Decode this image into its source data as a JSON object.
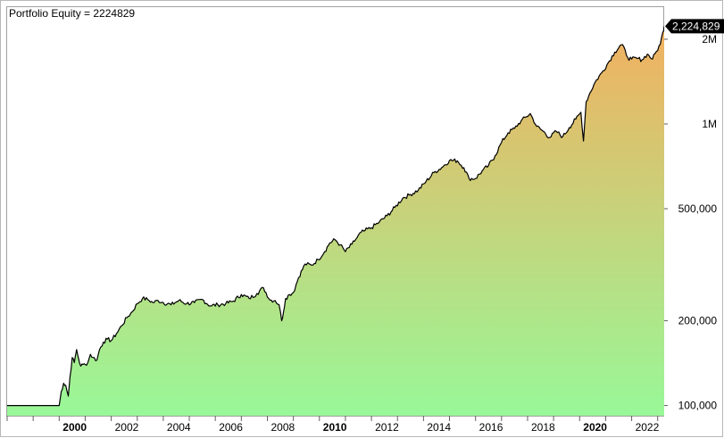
{
  "chart_data": {
    "type": "area",
    "title": "Portfolio Equity = 2224829",
    "last_value_label": "2,224,829",
    "y_scale": "log",
    "ylim": [
      92000,
      2600000
    ],
    "xlim": [
      1998.0,
      2023.25
    ],
    "y_ticks": [
      {
        "value": 100000,
        "label": "100,000"
      },
      {
        "value": 200000,
        "label": "200,000"
      },
      {
        "value": 500000,
        "label": "500,000"
      },
      {
        "value": 1000000,
        "label": "1M"
      },
      {
        "value": 2000000,
        "label": "2M"
      }
    ],
    "x_ticks": [
      {
        "value": 2000,
        "label": "2000",
        "bold": true
      },
      {
        "value": 2002,
        "label": "2002",
        "bold": false
      },
      {
        "value": 2004,
        "label": "2004",
        "bold": false
      },
      {
        "value": 2006,
        "label": "2006",
        "bold": false
      },
      {
        "value": 2008,
        "label": "2008",
        "bold": false
      },
      {
        "value": 2010,
        "label": "2010",
        "bold": true
      },
      {
        "value": 2012,
        "label": "2012",
        "bold": false
      },
      {
        "value": 2014,
        "label": "2014",
        "bold": false
      },
      {
        "value": 2016,
        "label": "2016",
        "bold": false
      },
      {
        "value": 2018,
        "label": "2018",
        "bold": false
      },
      {
        "value": 2020,
        "label": "2020",
        "bold": true
      },
      {
        "value": 2022,
        "label": "2022",
        "bold": false
      }
    ],
    "grid": false,
    "fill_gradient": {
      "top": "#f2b060",
      "bottom": "#98f898"
    },
    "line_color": "#000000",
    "series": [
      {
        "x": [
          1998.0,
          1999.5,
          1999.75,
          1999.8,
          1999.85,
          1999.95,
          2000.0,
          2000.08,
          2000.17,
          2000.25,
          2000.35,
          2000.42,
          2000.5,
          2000.58,
          2000.67,
          2000.75,
          2000.83,
          2000.92,
          2001.0,
          2001.1,
          2001.2,
          2001.3,
          2001.45,
          2001.55,
          2001.7,
          2001.85,
          2002.0,
          2002.2,
          2002.4,
          2002.6,
          2002.8,
          2003.0,
          2003.2,
          2003.4,
          2003.6,
          2003.8,
          2004.0,
          2004.3,
          2004.6,
          2004.9,
          2005.2,
          2005.5,
          2005.8,
          2006.1,
          2006.4,
          2006.7,
          2007.0,
          2007.3,
          2007.6,
          2007.85,
          2008.1,
          2008.3,
          2008.45,
          2008.55,
          2008.62,
          2008.7,
          2008.85,
          2009.0,
          2009.2,
          2009.45,
          2009.7,
          2009.95,
          2010.2,
          2010.4,
          2010.6,
          2010.8,
          2011.0,
          2011.25,
          2011.45,
          2011.6,
          2011.75,
          2012.0,
          2012.3,
          2012.6,
          2012.9,
          2013.2,
          2013.5,
          2013.8,
          2014.1,
          2014.4,
          2014.7,
          2015.0,
          2015.3,
          2015.55,
          2015.75,
          2016.0,
          2016.25,
          2016.5,
          2016.75,
          2017.0,
          2017.25,
          2017.5,
          2017.75,
          2017.95,
          2018.1,
          2018.35,
          2018.6,
          2018.85,
          2019.1,
          2019.35,
          2019.6,
          2019.85,
          2020.05,
          2020.15,
          2020.25,
          2020.4,
          2020.6,
          2020.85,
          2021.1,
          2021.35,
          2021.6,
          2021.75,
          2021.85,
          2022.0,
          2022.2,
          2022.4,
          2022.6,
          2022.8,
          2022.95,
          2023.1,
          2023.2,
          2023.25
        ],
        "y": [
          100000,
          100000,
          100000,
          100000,
          100000,
          100000,
          100000,
          112000,
          120000,
          118000,
          108000,
          127000,
          148000,
          142000,
          158000,
          146000,
          138000,
          140000,
          140000,
          142000,
          152000,
          148000,
          145000,
          158000,
          168000,
          172000,
          170000,
          180000,
          192000,
          205000,
          215000,
          230000,
          240000,
          238000,
          232000,
          236000,
          232000,
          228000,
          236000,
          230000,
          232000,
          238000,
          226000,
          228000,
          230000,
          235000,
          248000,
          240000,
          250000,
          262000,
          237000,
          236000,
          228000,
          200000,
          215000,
          240000,
          248000,
          252000,
          285000,
          318000,
          315000,
          330000,
          352000,
          378000,
          388000,
          372000,
          352000,
          374000,
          395000,
          412000,
          418000,
          428000,
          448000,
          472000,
          505000,
          545000,
          562000,
          582000,
          625000,
          672000,
          700000,
          742000,
          740000,
          700000,
          640000,
          640000,
          680000,
          712000,
          770000,
          860000,
          930000,
          965000,
          1025000,
          1060000,
          1090000,
          980000,
          942000,
          895000,
          942000,
          900000,
          970000,
          1040000,
          1100000,
          870000,
          1200000,
          1290000,
          1410000,
          1520000,
          1650000,
          1800000,
          1910000,
          1830000,
          1720000,
          1700000,
          1710000,
          1690000,
          1770000,
          1700000,
          1810000,
          1920000,
          2120000,
          2224829
        ]
      }
    ]
  }
}
